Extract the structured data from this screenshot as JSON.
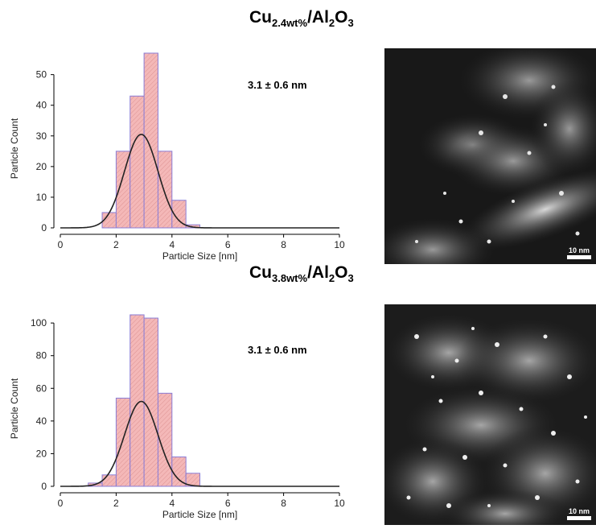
{
  "panels": [
    {
      "title_main": "Cu",
      "title_sub": "2.4wt%",
      "title_mid": "/Al",
      "title_sub2": "2",
      "title_mid2": "O",
      "title_sub3": "3",
      "annotation": "3.1 ± 0.6 nm",
      "scale_label": "10 nm"
    },
    {
      "title_main": "Cu",
      "title_sub": "3.8wt%",
      "title_mid": "/Al",
      "title_sub2": "2",
      "title_mid2": "O",
      "title_sub3": "3",
      "annotation": "3.1 ± 0.6 nm",
      "scale_label": "10 nm"
    }
  ],
  "chart_data": [
    {
      "type": "bar",
      "xlabel": "Particle Size [nm]",
      "ylabel": "Particle Count",
      "xlim": [
        0,
        10
      ],
      "ylim": [
        0,
        57
      ],
      "xticks": [
        0,
        2,
        4,
        6,
        8,
        10
      ],
      "yticks": [
        0,
        10,
        20,
        30,
        40,
        50
      ],
      "bin_width": 0.5,
      "bin_starts": [
        1.5,
        2.0,
        2.5,
        3.0,
        3.5,
        4.0,
        4.5
      ],
      "values": [
        5,
        25,
        43,
        57,
        25,
        9,
        1
      ],
      "fit": {
        "type": "gaussian",
        "mean": 2.9,
        "sigma": 0.6,
        "peak": 30.5
      },
      "bar_color": "#f4b8b8",
      "bar_edge": "#8a7dd6",
      "fit_color": "#222222"
    },
    {
      "type": "bar",
      "xlabel": "Particle Size [nm]",
      "ylabel": "Particle Count",
      "xlim": [
        0,
        10
      ],
      "ylim": [
        0,
        105
      ],
      "xticks": [
        0,
        2,
        4,
        6,
        8,
        10
      ],
      "yticks": [
        0,
        20,
        40,
        60,
        80,
        100
      ],
      "bin_width": 0.5,
      "bin_starts": [
        1.0,
        1.5,
        2.0,
        2.5,
        3.0,
        3.5,
        4.0,
        4.5
      ],
      "values": [
        2,
        7,
        54,
        105,
        103,
        57,
        18,
        8
      ],
      "fit": {
        "type": "gaussian",
        "mean": 2.9,
        "sigma": 0.6,
        "peak": 52
      },
      "bar_color": "#f4b8b8",
      "bar_edge": "#8a7dd6",
      "fit_color": "#222222"
    }
  ]
}
